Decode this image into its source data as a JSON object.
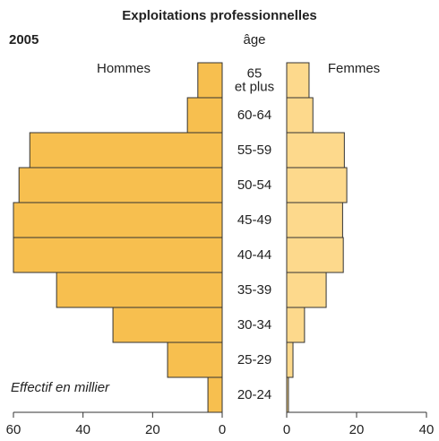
{
  "chart_data": {
    "type": "pyramid",
    "title": "Exploitations professionnelles",
    "subtitle": "2005",
    "category_axis_label": "âge",
    "annotation": "Effectif en millier",
    "categories": [
      "65\net plus",
      "60-64",
      "55-59",
      "50-54",
      "45-49",
      "40-44",
      "35-39",
      "30-34",
      "25-29",
      "20-24"
    ],
    "series": [
      {
        "name": "Hommes",
        "color": "#f7bf4f",
        "side": "left",
        "values": [
          7,
          10,
          55.3,
          58.4,
          60,
          60,
          47.6,
          31.4,
          15.7,
          4.1
        ]
      },
      {
        "name": "Femmes",
        "color": "#fdd98c",
        "side": "right",
        "values": [
          6.4,
          7.5,
          16.5,
          17.2,
          16,
          16.2,
          11.3,
          5.1,
          1.8,
          0.5
        ]
      }
    ],
    "xlim_left": [
      0,
      60
    ],
    "xticks_left": [
      60,
      40,
      20,
      0
    ],
    "xlim_right": [
      0,
      40
    ],
    "xticks_right": [
      0,
      20,
      40
    ]
  }
}
